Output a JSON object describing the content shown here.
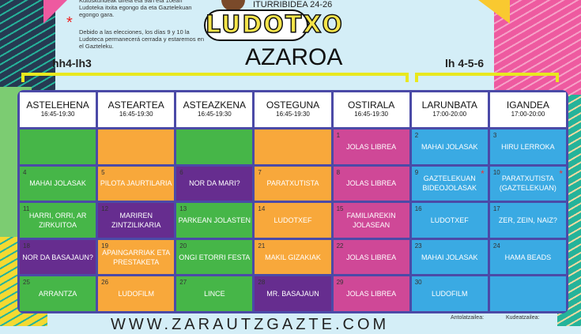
{
  "notes": {
    "eu": "Kutoskundeak direla eta 9an eta 10ean Ludoteka itxita egongo da eta Gaztelekuan egongo gara.",
    "es": "Debido a las elecciones, los días 9 y 10 la Ludoteca permanecerá cerrada y estaremos en el Gazteleku.",
    "star": "*"
  },
  "address": "ITURRIBIDEA 24-26",
  "logo": "LUDOTXO",
  "month": "AZAROA",
  "groups": [
    "hh4-lh3",
    "lh 4-5-6"
  ],
  "days": [
    {
      "name": "ASTELEHENA",
      "time": "16:45-19:30"
    },
    {
      "name": "ASTEARTEA",
      "time": "16:45-19:30"
    },
    {
      "name": "ASTEAZKENA",
      "time": "16:45-19:30"
    },
    {
      "name": "OSTEGUNA",
      "time": "16:45-19:30"
    },
    {
      "name": "OSTIRALA",
      "time": "16:45-19:30"
    },
    {
      "name": "LARUNBATA",
      "time": "17:00-20:00"
    },
    {
      "name": "IGANDEA",
      "time": "17:00-20:00"
    }
  ],
  "cells": [
    {
      "day": "",
      "text": "",
      "color": "green"
    },
    {
      "day": "",
      "text": "",
      "color": "orange"
    },
    {
      "day": "",
      "text": "",
      "color": "green"
    },
    {
      "day": "",
      "text": "",
      "color": "orange"
    },
    {
      "day": "1",
      "text": "JOLAS LIBREA",
      "color": "pink"
    },
    {
      "day": "2",
      "text": "MAHAI JOLASAK",
      "color": "blue"
    },
    {
      "day": "3",
      "text": "HIRU LERROKA",
      "color": "blue"
    },
    {
      "day": "4",
      "text": "MAHAI JOLASAK",
      "color": "green"
    },
    {
      "day": "5",
      "text": "PILOTA JAURTILARIA",
      "color": "orange"
    },
    {
      "day": "6",
      "text": "NOR DA MARI?",
      "color": "purple"
    },
    {
      "day": "7",
      "text": "PARATXUTISTA",
      "color": "orange"
    },
    {
      "day": "8",
      "text": "JOLAS LIBREA",
      "color": "pink"
    },
    {
      "day": "9",
      "text": "GAZTELEKUAN BIDEOJOLASAK",
      "color": "blue",
      "star": true
    },
    {
      "day": "10",
      "text": "PARATXUTISTA (GAZTELEKUAN)",
      "color": "blue",
      "star": true
    },
    {
      "day": "11",
      "text": "HARRI, ORRI, AR ZIRKUITOA",
      "color": "green"
    },
    {
      "day": "12",
      "text": "MARIREN ZINTZILIKARIA",
      "color": "purple"
    },
    {
      "day": "13",
      "text": "PARKEAN JOLASTEN",
      "color": "green"
    },
    {
      "day": "14",
      "text": "LUDOTXEF",
      "color": "orange"
    },
    {
      "day": "15",
      "text": "FAMILIAREKIN JOLASEAN",
      "color": "pink"
    },
    {
      "day": "16",
      "text": "LUDOTXEF",
      "color": "blue"
    },
    {
      "day": "17",
      "text": "ZER, ZEIN, NAIZ?",
      "color": "blue"
    },
    {
      "day": "18",
      "text": "NOR DA BASAJAUN?",
      "color": "purple"
    },
    {
      "day": "19",
      "text": "APAINGARRIAK ETA PRESTAKETA",
      "color": "orange"
    },
    {
      "day": "20",
      "text": "ONGI ETORRI FESTA",
      "color": "green"
    },
    {
      "day": "21",
      "text": "MAKIL GIZAKIAK",
      "color": "orange"
    },
    {
      "day": "22",
      "text": "JOLAS LIBREA",
      "color": "pink"
    },
    {
      "day": "23",
      "text": "MAHAI JOLASAK",
      "color": "blue"
    },
    {
      "day": "24",
      "text": "HAMA BEADS",
      "color": "blue"
    },
    {
      "day": "25",
      "text": "ARRANTZA",
      "color": "green"
    },
    {
      "day": "26",
      "text": "LUDOFILM",
      "color": "orange"
    },
    {
      "day": "27",
      "text": "LINCE",
      "color": "green"
    },
    {
      "day": "28",
      "text": "MR. BASAJAUN",
      "color": "purple"
    },
    {
      "day": "29",
      "text": "JOLAS LIBREA",
      "color": "pink"
    },
    {
      "day": "30",
      "text": "LUDOFILM",
      "color": "blue"
    },
    {
      "day": "",
      "text": "",
      "color": "blue"
    }
  ],
  "footer": {
    "url": "WWW.ZARAUTZGAZTE.COM",
    "organizer": "Antolatzailea:",
    "manager": "Kudeatzailea:"
  },
  "colors": {
    "green": "#46b648",
    "orange": "#f8a83b",
    "purple": "#662d8f",
    "pink": "#cf4897",
    "blue": "#3aaae3",
    "frame": "#4b4aa7"
  }
}
